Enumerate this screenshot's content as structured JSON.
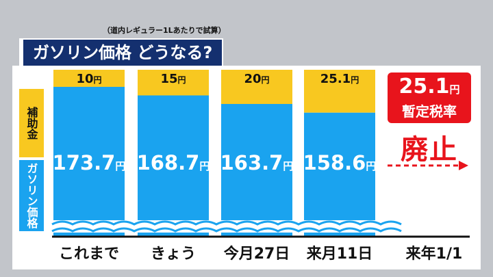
{
  "note": "（道内レギュラー1Lあたりで試算）",
  "title": "ガソリン価格 どうなる?",
  "legend": {
    "subsidy": "補助金",
    "price": "ガソリン価格"
  },
  "unit": "円",
  "colors": {
    "subsidy": "#f8c820",
    "price": "#1aa3ef",
    "accent": "#e8141c",
    "title_bg": "#14306f"
  },
  "chart_data": {
    "type": "bar",
    "stacked": true,
    "categories": [
      "これまで",
      "きょう",
      "今月27日",
      "来月11日",
      "来年1/1"
    ],
    "series": [
      {
        "name": "ガソリン価格",
        "values": [
          173.7,
          168.7,
          163.7,
          158.6,
          null
        ]
      },
      {
        "name": "補助金",
        "values": [
          10,
          15,
          20,
          25.1,
          null
        ]
      }
    ],
    "value_labels": {
      "price": [
        "173.7",
        "168.7",
        "163.7",
        "158.6"
      ],
      "subsidy": [
        "10",
        "15",
        "20",
        "25.1"
      ]
    },
    "axis_break": true
  },
  "tax": {
    "amount": "25.1",
    "unit": "円",
    "title": "暫定税率",
    "status": "廃止"
  }
}
